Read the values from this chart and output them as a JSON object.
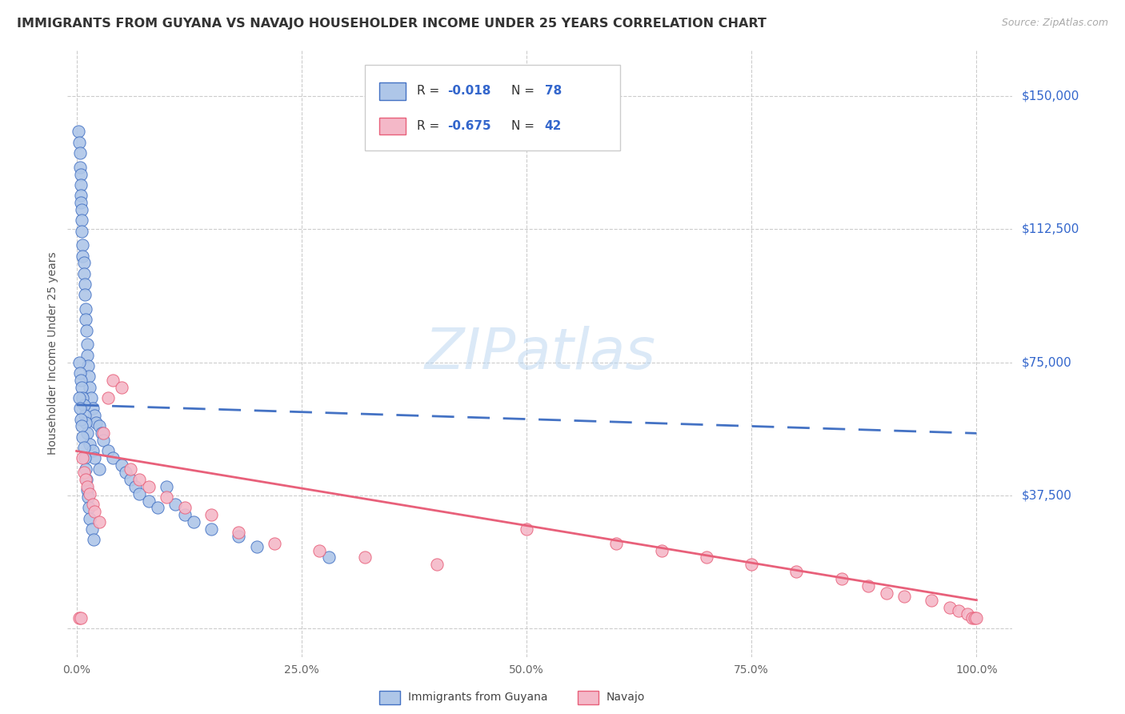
{
  "title": "IMMIGRANTS FROM GUYANA VS NAVAJO HOUSEHOLDER INCOME UNDER 25 YEARS CORRELATION CHART",
  "source": "Source: ZipAtlas.com",
  "ylabel": "Householder Income Under 25 years",
  "color_blue": "#aec6e8",
  "color_blue_edge": "#4472c4",
  "color_pink": "#f4b8c8",
  "color_pink_edge": "#e8607a",
  "color_label": "#3366cc",
  "color_grid": "#cccccc",
  "watermark": "ZIPatlas",
  "xlim": [
    -0.01,
    1.04
  ],
  "ylim": [
    -8000,
    163000
  ],
  "yticks": [
    0,
    37500,
    75000,
    112500,
    150000
  ],
  "ytick_labels": [
    "",
    "$37,500",
    "$75,000",
    "$112,500",
    "$150,000"
  ],
  "xticks": [
    0.0,
    0.25,
    0.5,
    0.75,
    1.0
  ],
  "xtick_labels": [
    "0.0%",
    "25.0%",
    "50.0%",
    "75.0%",
    "100.0%"
  ],
  "blue_trendline": [
    0.0,
    1.0,
    63000,
    55000
  ],
  "pink_trendline": [
    0.0,
    1.0,
    50000,
    8000
  ],
  "blue_x": [
    0.002,
    0.003,
    0.004,
    0.004,
    0.005,
    0.005,
    0.005,
    0.005,
    0.006,
    0.006,
    0.006,
    0.007,
    0.007,
    0.008,
    0.008,
    0.009,
    0.009,
    0.01,
    0.01,
    0.011,
    0.012,
    0.012,
    0.013,
    0.014,
    0.015,
    0.016,
    0.018,
    0.02,
    0.022,
    0.025,
    0.028,
    0.03,
    0.035,
    0.04,
    0.05,
    0.055,
    0.06,
    0.065,
    0.07,
    0.08,
    0.09,
    0.1,
    0.11,
    0.12,
    0.13,
    0.15,
    0.18,
    0.2,
    0.28,
    0.003,
    0.004,
    0.005,
    0.006,
    0.007,
    0.008,
    0.009,
    0.01,
    0.012,
    0.015,
    0.018,
    0.02,
    0.025,
    0.003,
    0.004,
    0.005,
    0.006,
    0.007,
    0.008,
    0.009,
    0.01,
    0.011,
    0.012,
    0.013,
    0.014,
    0.015,
    0.017,
    0.019
  ],
  "blue_y": [
    140000,
    137000,
    134000,
    130000,
    128000,
    125000,
    122000,
    120000,
    118000,
    115000,
    112000,
    108000,
    105000,
    103000,
    100000,
    97000,
    94000,
    90000,
    87000,
    84000,
    80000,
    77000,
    74000,
    71000,
    68000,
    65000,
    62000,
    60000,
    58000,
    57000,
    55000,
    53000,
    50000,
    48000,
    46000,
    44000,
    42000,
    40000,
    38000,
    36000,
    34000,
    40000,
    35000,
    32000,
    30000,
    28000,
    26000,
    23000,
    20000,
    75000,
    72000,
    70000,
    68000,
    65000,
    63000,
    60000,
    58000,
    55000,
    52000,
    50000,
    48000,
    45000,
    65000,
    62000,
    59000,
    57000,
    54000,
    51000,
    48000,
    45000,
    42000,
    39000,
    37000,
    34000,
    31000,
    28000,
    25000
  ],
  "pink_x": [
    0.003,
    0.005,
    0.007,
    0.008,
    0.01,
    0.012,
    0.015,
    0.018,
    0.02,
    0.025,
    0.03,
    0.035,
    0.04,
    0.05,
    0.06,
    0.07,
    0.08,
    0.1,
    0.12,
    0.15,
    0.18,
    0.22,
    0.27,
    0.32,
    0.4,
    0.5,
    0.6,
    0.65,
    0.7,
    0.75,
    0.8,
    0.85,
    0.88,
    0.9,
    0.92,
    0.95,
    0.97,
    0.98,
    0.99,
    0.995,
    0.998,
    1.0
  ],
  "pink_y": [
    3000,
    3000,
    48000,
    44000,
    42000,
    40000,
    38000,
    35000,
    33000,
    30000,
    55000,
    65000,
    70000,
    68000,
    45000,
    42000,
    40000,
    37000,
    34000,
    32000,
    27000,
    24000,
    22000,
    20000,
    18000,
    28000,
    24000,
    22000,
    20000,
    18000,
    16000,
    14000,
    12000,
    10000,
    9000,
    8000,
    6000,
    5000,
    4000,
    3000,
    3000,
    3000
  ]
}
